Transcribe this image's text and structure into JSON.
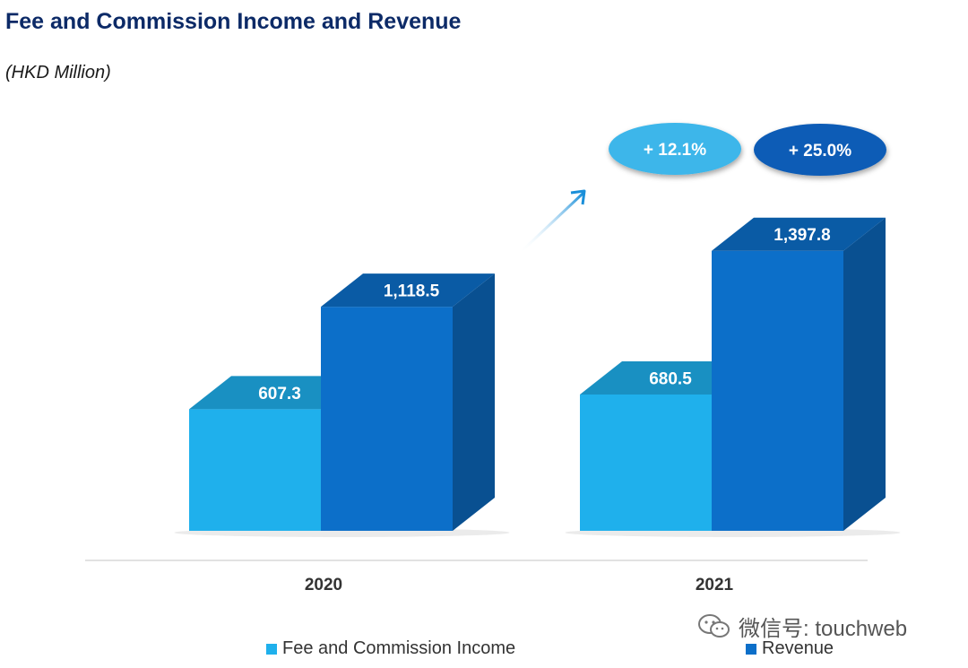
{
  "title": "Fee and Commission Income and Revenue",
  "subtitle": "(HKD Million)",
  "chart_data": {
    "type": "bar",
    "categories": [
      "2020",
      "2021"
    ],
    "series": [
      {
        "name": "Fee and Commission Income",
        "values": [
          607.3,
          680.5
        ],
        "labels": [
          "607.3",
          "680.5"
        ],
        "color": "#1fb0ec"
      },
      {
        "name": "Revenue",
        "values": [
          1118.5,
          1397.8
        ],
        "labels": [
          "1,118.5",
          "1,397.8"
        ],
        "color": "#0c6fc9"
      }
    ],
    "annotations": [
      {
        "text": "+ 12.1%",
        "color": "#3cb6ea"
      },
      {
        "text": "+ 25.0%",
        "color": "#0d5bb6"
      }
    ],
    "legend_position": "bottom",
    "grid": false
  },
  "watermark": {
    "text": "微信号: touchweb",
    "icon": "wechat-icon"
  }
}
